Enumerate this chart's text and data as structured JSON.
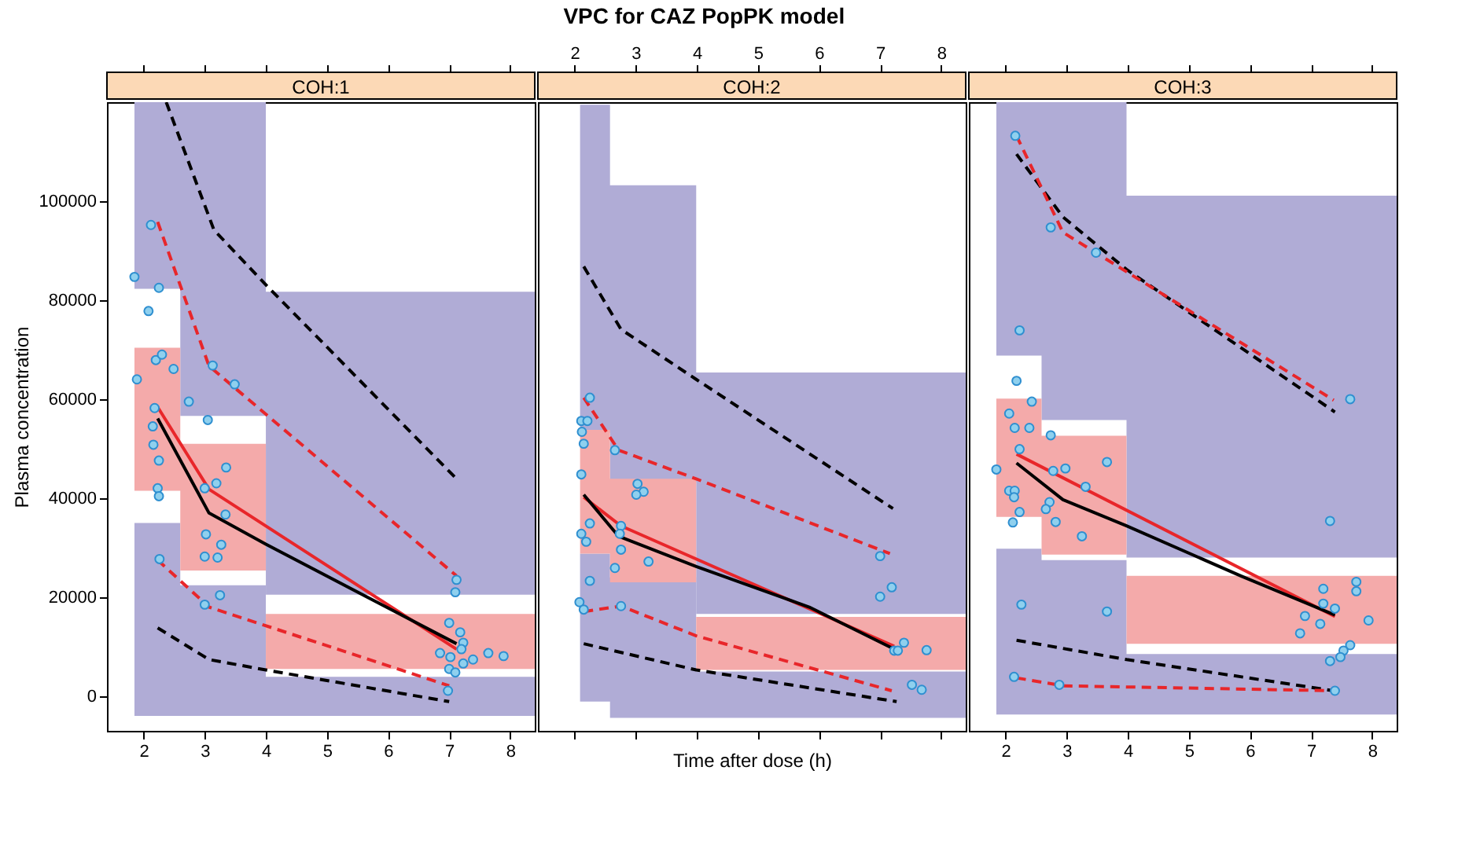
{
  "chart_data": [
    {
      "type": "scatter",
      "title": "COH:1",
      "ylabel": "Plasma concentration",
      "xlim": [
        1.4,
        8.4
      ],
      "xticks": [
        2,
        3,
        4,
        5,
        6,
        7,
        8
      ],
      "ylim": [
        -7000,
        120000
      ],
      "yticks": [
        0,
        20000,
        40000,
        60000,
        80000,
        100000
      ],
      "series": [
        {
          "type": "area",
          "color": "#b0acd6",
          "x": [
            1.85,
            2.6,
            2.6,
            4,
            4,
            8.4
          ],
          "values": [
            null,
            null,
            null,
            null,
            null,
            null
          ],
          "lower": [
            -4000,
            -4000,
            -4000,
            -4000,
            -4000,
            -4000
          ],
          "upper": [
            35000,
            35000,
            22400,
            22400,
            3900,
            3900
          ]
        },
        {
          "type": "area",
          "color": "#b0acd6",
          "x": [
            1.85,
            2.6,
            2.6,
            4,
            4,
            8.4
          ],
          "values": [
            null,
            null,
            null,
            null,
            null,
            null
          ],
          "lower": [
            82300,
            82300,
            56600,
            56600,
            20500,
            20500
          ],
          "upper": [
            120000,
            120000,
            120000,
            120000,
            81700,
            81700
          ]
        },
        {
          "type": "area",
          "color": "#f4aaaa",
          "x": [
            1.85,
            2.6,
            2.6,
            4,
            4,
            8.4
          ],
          "values": [
            null,
            null,
            null,
            null,
            null,
            null
          ],
          "lower": [
            41500,
            41500,
            25400,
            25400,
            5500,
            5500
          ],
          "upper": [
            70400,
            70400,
            51000,
            51000,
            16600,
            16600
          ]
        },
        {
          "type": "line",
          "color": "#000000",
          "line_style": "dashed",
          "x": [
            2.37,
            3.15,
            4.0,
            7.12
          ],
          "values": [
            120000,
            94200,
            83100,
            43900
          ]
        },
        {
          "type": "line",
          "color": "#e8262a",
          "line_style": "dashed",
          "x": [
            2.23,
            3.07,
            7.12
          ],
          "values": [
            95800,
            66700,
            24300
          ]
        },
        {
          "type": "line",
          "color": "#e8262a",
          "line_style": "solid",
          "x": [
            2.23,
            3.07,
            7.12
          ],
          "values": [
            58400,
            41800,
            9500
          ]
        },
        {
          "type": "line",
          "color": "#000000",
          "line_style": "solid",
          "x": [
            2.23,
            3.07,
            4.0,
            7.12
          ],
          "values": [
            56100,
            37000,
            30700,
            10600
          ]
        },
        {
          "type": "line",
          "color": "#e8262a",
          "line_style": "dashed",
          "x": [
            2.23,
            3.07,
            7.0
          ],
          "values": [
            27500,
            18000,
            2100
          ]
        },
        {
          "type": "line",
          "color": "#000000",
          "line_style": "dashed",
          "x": [
            2.23,
            3.07,
            4.0,
            7.0
          ],
          "values": [
            13800,
            7400,
            5300,
            -1100
          ]
        },
        {
          "type": "scatter",
          "marker": "circle",
          "color": "#8fd0ee",
          "x": [
            1.85,
            2.08,
            2.12,
            2.25,
            1.89,
            2.2,
            2.3,
            2.49,
            2.74,
            2.18,
            2.15,
            2.16,
            2.25,
            2.23,
            2.25,
            2.26,
            3.13,
            3.49,
            3.05,
            3.35,
            3.19,
            3.0,
            3.34,
            3.02,
            3.27,
            3.0,
            3.21,
            3.25,
            3.0,
            7.12,
            7.1,
            7.0,
            7.18,
            7.23,
            7.2,
            6.85,
            7.02,
            7.64,
            7.89,
            7.39,
            7.23,
            7.0,
            7.1,
            6.98
          ],
          "values": [
            84700,
            77800,
            95200,
            82500,
            64000,
            67900,
            69000,
            66100,
            59500,
            58200,
            54500,
            50800,
            47600,
            42000,
            40400,
            27700,
            66800,
            63000,
            55800,
            46200,
            43000,
            42000,
            36700,
            32700,
            30600,
            28200,
            28000,
            20400,
            18500,
            23500,
            21000,
            14800,
            12900,
            10800,
            9500,
            8700,
            7900,
            8700,
            8100,
            7400,
            6600,
            5500,
            4800,
            1100
          ]
        }
      ]
    },
    {
      "type": "scatter",
      "title": "COH:2",
      "xlabel": "Time after dose (h)",
      "annotations": [
        "VPC for CAZ PopPK model"
      ],
      "xlim": [
        1.4,
        8.4
      ],
      "xticks": [
        2,
        3,
        4,
        5,
        6,
        7,
        8
      ],
      "ylim": [
        -7000,
        120000
      ],
      "yticks": [
        0,
        20000,
        40000,
        60000,
        80000,
        100000
      ],
      "tick_labels": "x",
      "series": [
        {
          "type": "area",
          "color": "#b0acd6",
          "x": [
            2.09,
            2.58,
            2.58,
            3.99,
            3.99,
            8.4
          ],
          "values": [
            null,
            null,
            null,
            null,
            null,
            null
          ],
          "lower": [
            -1100,
            -1100,
            -4400,
            -4400,
            -4400,
            -4400
          ],
          "upper": [
            28800,
            28800,
            24000,
            24000,
            5000,
            5000
          ]
        },
        {
          "type": "area",
          "color": "#b0acd6",
          "x": [
            2.09,
            2.58,
            2.58,
            3.99,
            3.99,
            8.4
          ],
          "values": [
            null,
            null,
            null,
            null,
            null,
            null
          ],
          "lower": [
            53200,
            53200,
            43300,
            43300,
            16600,
            16600
          ],
          "upper": [
            119500,
            119500,
            103200,
            103200,
            65400,
            65400
          ]
        },
        {
          "type": "area",
          "color": "#f4aaaa",
          "x": [
            2.09,
            2.58,
            2.58,
            3.99,
            3.99,
            8.4
          ],
          "values": [
            null,
            null,
            null,
            null,
            null,
            null
          ],
          "lower": [
            28800,
            28800,
            23000,
            23000,
            5300,
            5300
          ],
          "upper": [
            53800,
            53800,
            43900,
            43900,
            16000,
            16000
          ]
        },
        {
          "type": "line",
          "color": "#000000",
          "line_style": "dashed",
          "x": [
            2.15,
            2.76,
            3.99,
            7.21
          ],
          "values": [
            86800,
            74100,
            64000,
            37900
          ]
        },
        {
          "type": "line",
          "color": "#e8262a",
          "line_style": "dashed",
          "x": [
            2.15,
            2.72,
            3.99,
            7.16
          ],
          "values": [
            60300,
            49700,
            43900,
            28800
          ]
        },
        {
          "type": "line",
          "color": "#e8262a",
          "line_style": "solid",
          "x": [
            2.15,
            2.76,
            7.23
          ],
          "values": [
            40200,
            34400,
            10100
          ]
        },
        {
          "type": "line",
          "color": "#000000",
          "line_style": "solid",
          "x": [
            2.15,
            2.72,
            3.99,
            5.84,
            7.23
          ],
          "values": [
            40700,
            32300,
            26200,
            18000,
            9500
          ]
        },
        {
          "type": "line",
          "color": "#e8262a",
          "line_style": "dashed",
          "x": [
            2.15,
            2.76,
            3.99,
            7.19
          ],
          "values": [
            17100,
            18200,
            12200,
            1100
          ]
        },
        {
          "type": "line",
          "color": "#000000",
          "line_style": "dashed",
          "x": [
            2.15,
            3.99,
            7.27
          ],
          "values": [
            10600,
            5300,
            -1100
          ]
        },
        {
          "type": "scatter",
          "marker": "circle",
          "color": "#8fd0ee",
          "x": [
            2.25,
            2.11,
            2.21,
            2.12,
            2.15,
            2.11,
            2.66,
            3.03,
            3.13,
            3.01,
            2.25,
            2.11,
            2.19,
            2.76,
            2.74,
            2.76,
            2.66,
            3.21,
            2.25,
            2.08,
            2.15,
            2.76,
            7.0,
            7.0,
            7.19,
            7.39,
            7.23,
            7.29,
            7.76,
            7.52,
            7.68
          ],
          "values": [
            60300,
            55600,
            55600,
            53400,
            51000,
            44800,
            49700,
            42900,
            41300,
            40700,
            34900,
            32800,
            31200,
            34400,
            32800,
            29600,
            25900,
            27200,
            23300,
            19000,
            17500,
            18200,
            28300,
            20100,
            22000,
            10800,
            9200,
            9200,
            9300,
            2300,
            1300
          ]
        }
      ]
    },
    {
      "type": "scatter",
      "title": "COH:3",
      "xlim": [
        1.4,
        8.4
      ],
      "xticks": [
        2,
        3,
        4,
        5,
        6,
        7,
        8
      ],
      "ylim": [
        -7000,
        120000
      ],
      "yticks": [
        0,
        20000,
        40000,
        60000,
        80000,
        100000
      ],
      "tick_labels": "x",
      "series": [
        {
          "type": "area",
          "color": "#b0acd6",
          "x": [
            1.85,
            2.59,
            2.59,
            3.98,
            3.98,
            8.4
          ],
          "values": [
            null,
            null,
            null,
            null,
            null,
            null
          ],
          "lower": [
            -3700,
            -3700,
            -3700,
            -3700,
            -3700,
            -3700
          ],
          "upper": [
            29800,
            29800,
            27500,
            27500,
            8500,
            8500
          ]
        },
        {
          "type": "area",
          "color": "#b0acd6",
          "x": [
            1.85,
            2.59,
            2.59,
            3.98,
            3.98,
            8.4
          ],
          "values": [
            null,
            null,
            null,
            null,
            null,
            null
          ],
          "lower": [
            68800,
            68800,
            55800,
            55800,
            28000,
            28000
          ],
          "upper": [
            120000,
            120000,
            120000,
            120000,
            101100,
            101100
          ]
        },
        {
          "type": "area",
          "color": "#f4aaaa",
          "x": [
            1.85,
            2.59,
            2.59,
            3.98,
            3.98,
            8.4
          ],
          "values": [
            null,
            null,
            null,
            null,
            null,
            null
          ],
          "lower": [
            36200,
            36200,
            28600,
            28600,
            10600,
            10600
          ],
          "upper": [
            60100,
            60100,
            52600,
            52600,
            24300,
            24300
          ]
        },
        {
          "type": "line",
          "color": "#000000",
          "line_style": "dashed",
          "x": [
            2.18,
            2.94,
            3.98,
            7.39
          ],
          "values": [
            109500,
            96800,
            86200,
            57400
          ]
        },
        {
          "type": "line",
          "color": "#e8262a",
          "line_style": "dashed",
          "x": [
            2.18,
            2.94,
            7.37
          ],
          "values": [
            113200,
            93700,
            59800
          ]
        },
        {
          "type": "line",
          "color": "#e8262a",
          "line_style": "solid",
          "x": [
            2.18,
            7.39
          ],
          "values": [
            48900,
            16100
          ]
        },
        {
          "type": "line",
          "color": "#000000",
          "line_style": "solid",
          "x": [
            2.18,
            2.94,
            3.98,
            5.85,
            7.39
          ],
          "values": [
            47100,
            39700,
            34400,
            24300,
            16400
          ]
        },
        {
          "type": "line",
          "color": "#000000",
          "line_style": "dashed",
          "x": [
            2.18,
            3.98,
            7.37
          ],
          "values": [
            11300,
            7400,
            1100
          ]
        },
        {
          "type": "line",
          "color": "#e8262a",
          "line_style": "dashed",
          "x": [
            2.18,
            2.94,
            7.39
          ],
          "values": [
            3700,
            2100,
            1100
          ]
        },
        {
          "type": "scatter",
          "marker": "circle",
          "color": "#8fd0ee",
          "x": [
            2.16,
            2.74,
            3.48,
            2.23,
            2.18,
            2.43,
            2.06,
            2.15,
            2.39,
            2.74,
            2.23,
            1.85,
            2.78,
            2.98,
            3.66,
            3.31,
            2.06,
            2.15,
            2.14,
            2.72,
            2.66,
            2.23,
            2.12,
            2.82,
            3.25,
            2.26,
            3.66,
            2.14,
            2.88,
            7.64,
            7.31,
            7.74,
            7.74,
            7.2,
            7.2,
            7.39,
            6.9,
            7.94,
            7.15,
            6.82,
            7.64,
            7.53,
            7.48,
            7.31,
            7.39
          ],
          "values": [
            113200,
            94700,
            89600,
            73900,
            63700,
            59500,
            57100,
            54200,
            54200,
            52700,
            49900,
            45800,
            45500,
            46000,
            47300,
            42300,
            41500,
            41500,
            40200,
            39200,
            37800,
            37200,
            35100,
            35200,
            32300,
            18500,
            17100,
            3900,
            2300,
            60000,
            35400,
            23100,
            21200,
            21700,
            18700,
            17700,
            16200,
            15300,
            14600,
            12700,
            10300,
            9200,
            7900,
            7100,
            1100
          ]
        }
      ]
    }
  ]
}
